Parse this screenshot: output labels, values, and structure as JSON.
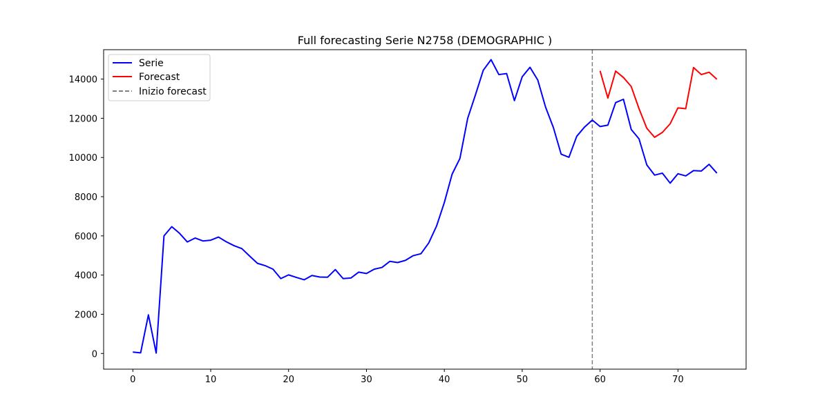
{
  "chart_data": {
    "type": "line",
    "title": "Full forecasting Serie N2758 (DEMOGRAPHIC )",
    "xlabel": "",
    "ylabel": "",
    "xlim": [
      -3.75,
      78.75
    ],
    "ylim": [
      -800,
      15500
    ],
    "xticks": [
      0,
      10,
      20,
      30,
      40,
      50,
      60,
      70
    ],
    "yticks": [
      0,
      2000,
      4000,
      6000,
      8000,
      10000,
      12000,
      14000
    ],
    "grid": false,
    "legend_position": "upper-left",
    "series": [
      {
        "name": "Serie",
        "color": "#0000ff",
        "style": "solid",
        "x": [
          0,
          1,
          2,
          3,
          4,
          5,
          6,
          7,
          8,
          9,
          10,
          11,
          12,
          13,
          14,
          15,
          16,
          17,
          18,
          19,
          20,
          21,
          22,
          23,
          24,
          25,
          26,
          27,
          28,
          29,
          30,
          31,
          32,
          33,
          34,
          35,
          36,
          37,
          38,
          39,
          40,
          41,
          42,
          43,
          44,
          45,
          46,
          47,
          48,
          49,
          50,
          51,
          52,
          53,
          54,
          55,
          56,
          57,
          58,
          59,
          60,
          61,
          62,
          63,
          64,
          65,
          66,
          67,
          68,
          69,
          70,
          71,
          72,
          73,
          74,
          75
        ],
        "y": [
          70,
          30,
          1970,
          20,
          6000,
          6470,
          6130,
          5690,
          5890,
          5740,
          5780,
          5940,
          5700,
          5500,
          5350,
          4970,
          4600,
          4480,
          4300,
          3820,
          4010,
          3880,
          3760,
          3980,
          3900,
          3890,
          4280,
          3820,
          3850,
          4150,
          4080,
          4300,
          4390,
          4700,
          4640,
          4750,
          4990,
          5090,
          5640,
          6500,
          7700,
          9150,
          9950,
          12000,
          13200,
          14450,
          14990,
          14230,
          14280,
          12900,
          14120,
          14600,
          13950,
          12570,
          11530,
          10170,
          10010,
          11080,
          11550,
          11910,
          11580,
          11650,
          12800,
          12970,
          11430,
          10950,
          9620,
          9100,
          9200,
          8690,
          9170,
          9060,
          9330,
          9310,
          9650,
          9200
        ]
      },
      {
        "name": "Forecast",
        "color": "#ff0000",
        "style": "solid",
        "x": [
          60,
          61,
          62,
          63,
          64,
          65,
          66,
          67,
          68,
          69,
          70,
          71,
          72,
          73,
          74,
          75
        ],
        "y": [
          14420,
          13030,
          14410,
          14080,
          13620,
          12490,
          11490,
          11030,
          11280,
          11720,
          12530,
          12490,
          14590,
          14230,
          14350,
          13990
        ]
      }
    ],
    "vline": {
      "name": "Inizio forecast",
      "x": 59,
      "color": "#808080",
      "style": "dashed"
    }
  }
}
